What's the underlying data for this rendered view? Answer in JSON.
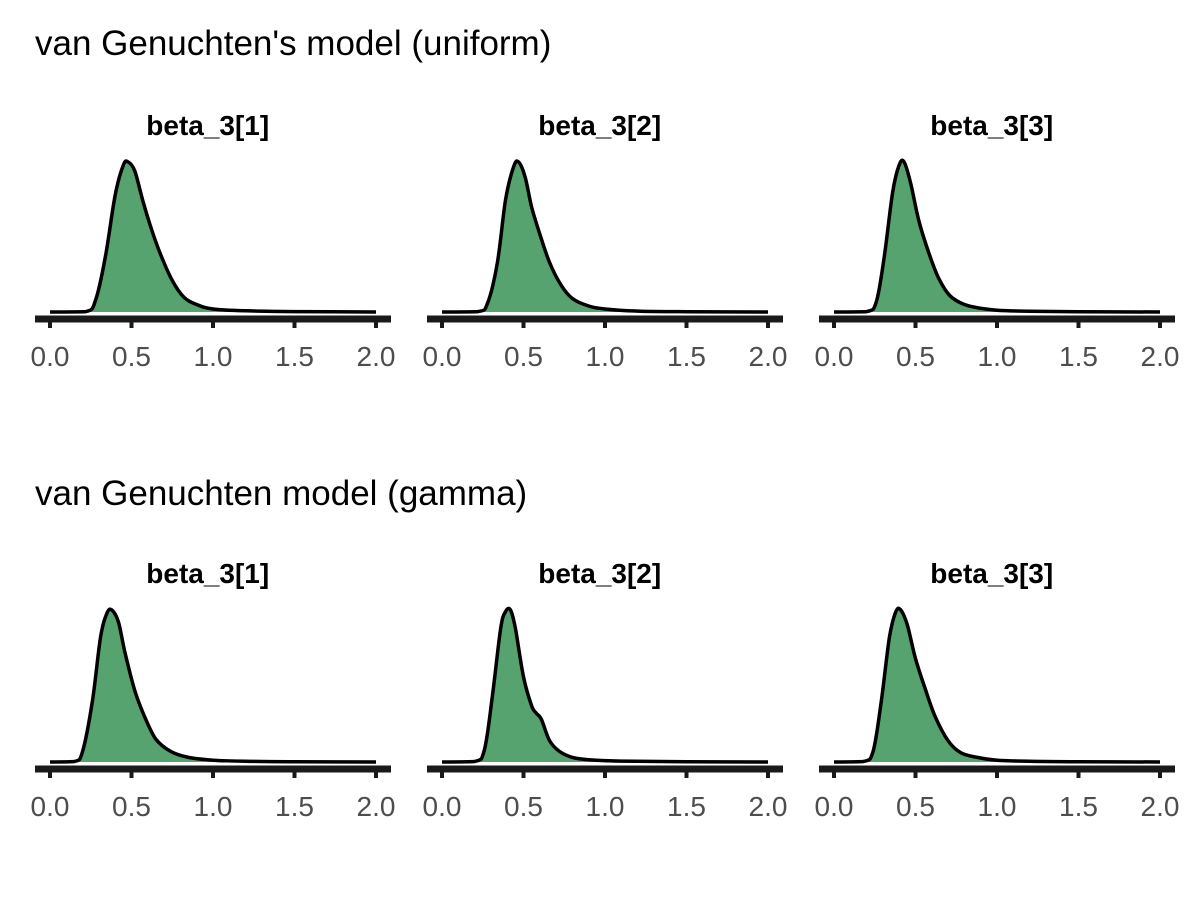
{
  "colors": {
    "fill": "#57a370",
    "outline": "#000000",
    "axis": "#1a1a1a",
    "tick_text": "#4d4d4d"
  },
  "chart_data": [
    {
      "type": "area",
      "title": "van Genuchten's model (uniform)",
      "xlim": [
        0,
        2
      ],
      "xticks": [
        "0.0",
        "0.5",
        "1.0",
        "1.5",
        "2.0"
      ],
      "y_axis": "hidden",
      "grid": false,
      "facets": [
        {
          "label": "beta_3[1]",
          "x": [
            0.0,
            0.22,
            0.28,
            0.34,
            0.4,
            0.45,
            0.48,
            0.52,
            0.57,
            0.62,
            0.68,
            0.75,
            0.82,
            0.9,
            1.0,
            1.2,
            1.5,
            2.0
          ],
          "density": [
            0.0,
            0.003,
            0.08,
            0.37,
            0.78,
            0.98,
            1.0,
            0.94,
            0.74,
            0.56,
            0.38,
            0.21,
            0.1,
            0.05,
            0.02,
            0.008,
            0.003,
            0.0
          ]
        },
        {
          "label": "beta_3[2]",
          "x": [
            0.0,
            0.22,
            0.28,
            0.34,
            0.39,
            0.44,
            0.47,
            0.51,
            0.55,
            0.6,
            0.66,
            0.73,
            0.8,
            0.9,
            1.0,
            1.2,
            1.5,
            2.0
          ],
          "density": [
            0.0,
            0.003,
            0.06,
            0.33,
            0.75,
            0.97,
            1.0,
            0.9,
            0.7,
            0.52,
            0.33,
            0.18,
            0.09,
            0.04,
            0.02,
            0.006,
            0.002,
            0.0
          ]
        },
        {
          "label": "beta_3[3]",
          "x": [
            0.0,
            0.2,
            0.26,
            0.31,
            0.36,
            0.4,
            0.43,
            0.47,
            0.52,
            0.58,
            0.64,
            0.71,
            0.8,
            0.9,
            1.0,
            1.2,
            1.5,
            2.0
          ],
          "density": [
            0.0,
            0.003,
            0.07,
            0.38,
            0.8,
            0.98,
            1.0,
            0.86,
            0.61,
            0.4,
            0.23,
            0.11,
            0.05,
            0.025,
            0.012,
            0.005,
            0.002,
            0.0
          ]
        }
      ]
    },
    {
      "type": "area",
      "title": "van Genuchten model (gamma)",
      "xlim": [
        0,
        2
      ],
      "xticks": [
        "0.0",
        "0.5",
        "1.0",
        "1.5",
        "2.0"
      ],
      "y_axis": "hidden",
      "grid": false,
      "facets": [
        {
          "label": "beta_3[1]",
          "x": [
            0.0,
            0.15,
            0.2,
            0.26,
            0.31,
            0.35,
            0.38,
            0.42,
            0.46,
            0.52,
            0.58,
            0.65,
            0.74,
            0.85,
            1.0,
            1.2,
            1.5,
            2.0
          ],
          "density": [
            0.0,
            0.003,
            0.07,
            0.4,
            0.82,
            0.98,
            1.0,
            0.92,
            0.72,
            0.47,
            0.3,
            0.15,
            0.07,
            0.03,
            0.012,
            0.005,
            0.002,
            0.0
          ]
        },
        {
          "label": "beta_3[2]",
          "x": [
            0.0,
            0.2,
            0.26,
            0.31,
            0.36,
            0.39,
            0.42,
            0.45,
            0.5,
            0.55,
            0.58,
            0.61,
            0.66,
            0.72,
            0.8,
            0.9,
            1.1,
            1.5,
            2.0
          ],
          "density": [
            0.0,
            0.003,
            0.08,
            0.44,
            0.88,
            0.99,
            1.0,
            0.88,
            0.56,
            0.37,
            0.32,
            0.28,
            0.14,
            0.07,
            0.03,
            0.015,
            0.006,
            0.002,
            0.0
          ]
        },
        {
          "label": "beta_3[3]",
          "x": [
            0.0,
            0.18,
            0.24,
            0.29,
            0.34,
            0.38,
            0.41,
            0.45,
            0.5,
            0.56,
            0.62,
            0.7,
            0.78,
            0.88,
            1.0,
            1.2,
            1.5,
            2.0
          ],
          "density": [
            0.0,
            0.003,
            0.07,
            0.4,
            0.82,
            0.99,
            1.0,
            0.9,
            0.68,
            0.48,
            0.3,
            0.14,
            0.06,
            0.03,
            0.012,
            0.005,
            0.002,
            0.0
          ]
        }
      ]
    }
  ]
}
